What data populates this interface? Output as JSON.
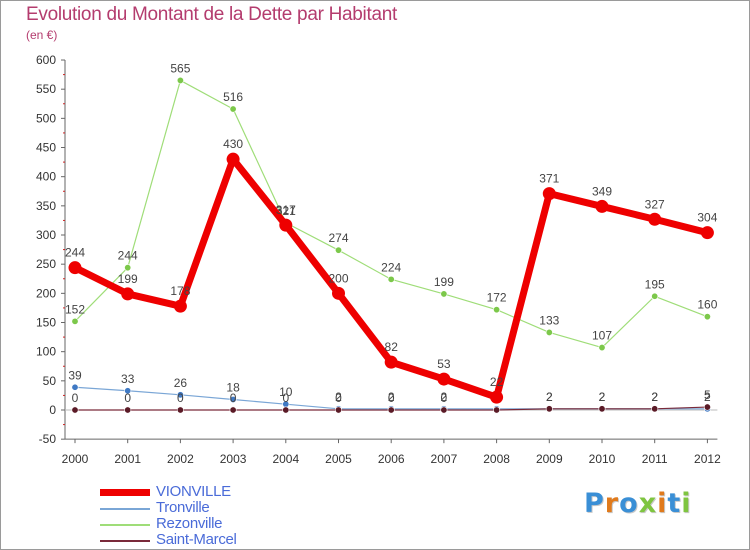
{
  "header": {
    "title": "Evolution du Montant de la Dette par Habitant",
    "unit": "(en €)"
  },
  "logo": {
    "text": "Proxiti",
    "letter_colors": [
      "#3a8fd6",
      "#e07a1c",
      "#3a8fd6",
      "#7fc540",
      "#e07a1c",
      "#3a8fd6",
      "#7fc540"
    ]
  },
  "chart_data": {
    "type": "line",
    "categories": [
      "2000",
      "2001",
      "2002",
      "2003",
      "2004",
      "2005",
      "2006",
      "2007",
      "2008",
      "2009",
      "2010",
      "2011",
      "2012"
    ],
    "ylim": [
      -50,
      600
    ],
    "yticks": [
      -50,
      0,
      50,
      100,
      150,
      200,
      250,
      300,
      350,
      400,
      450,
      500,
      550,
      600
    ],
    "grid": false,
    "legend_position": "bottom-left",
    "series": [
      {
        "name": "Rezonville",
        "color": "#9fdd78",
        "marker_color": "#7cc84a",
        "line_width": 1.2,
        "values": [
          152,
          244,
          565,
          516,
          321,
          274,
          224,
          199,
          172,
          133,
          107,
          195,
          160
        ],
        "labels": [
          "152",
          "244",
          "565",
          "516",
          "321",
          "274",
          "224",
          "199",
          "172",
          "133",
          "107",
          "195",
          "160"
        ]
      },
      {
        "name": "Tronville",
        "color": "#7aa6d6",
        "marker_color": "#3f79c4",
        "line_width": 1.2,
        "values": [
          39,
          33,
          26,
          18,
          10,
          2,
          2,
          2,
          2,
          2,
          2,
          2,
          2
        ],
        "labels": [
          "39",
          "33",
          "26",
          "18",
          "10",
          "2",
          "2",
          "2",
          "2",
          "2",
          "2",
          "2",
          "2"
        ]
      },
      {
        "name": "Saint-Marcel",
        "color": "#7a2a3a",
        "marker_color": "#5a1a26",
        "line_width": 1.2,
        "values": [
          0,
          0,
          0,
          0,
          0,
          0,
          0,
          0,
          0,
          2,
          2,
          2,
          5
        ],
        "labels": [
          "0",
          "0",
          "0",
          "0",
          "0",
          "0",
          "0",
          "0",
          "0",
          "2",
          "2",
          "2",
          "5"
        ]
      },
      {
        "name": "VIONVILLE",
        "color": "#ee0000",
        "marker_color": "#ee0000",
        "line_width": 7,
        "values": [
          244,
          199,
          178,
          430,
          317,
          200,
          82,
          53,
          22,
          371,
          349,
          327,
          304
        ],
        "labels": [
          "244",
          "199",
          "178",
          "430",
          "317",
          "200",
          "82",
          "53",
          "22",
          "371",
          "349",
          "327",
          "304"
        ]
      }
    ],
    "legend_order": [
      "VIONVILLE",
      "Tronville",
      "Rezonville",
      "Saint-Marcel"
    ]
  }
}
